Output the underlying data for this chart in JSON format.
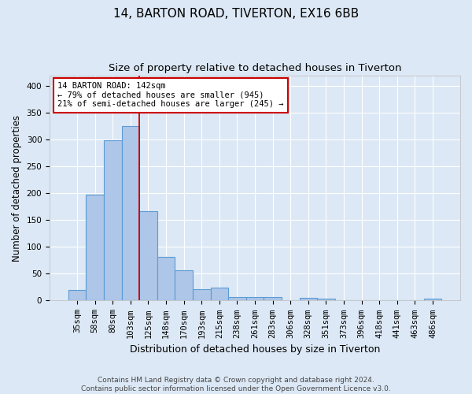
{
  "title1": "14, BARTON ROAD, TIVERTON, EX16 6BB",
  "title2": "Size of property relative to detached houses in Tiverton",
  "xlabel": "Distribution of detached houses by size in Tiverton",
  "ylabel": "Number of detached properties",
  "categories": [
    "35sqm",
    "58sqm",
    "80sqm",
    "103sqm",
    "125sqm",
    "148sqm",
    "170sqm",
    "193sqm",
    "215sqm",
    "238sqm",
    "261sqm",
    "283sqm",
    "306sqm",
    "328sqm",
    "351sqm",
    "373sqm",
    "396sqm",
    "418sqm",
    "441sqm",
    "463sqm",
    "486sqm"
  ],
  "values": [
    20,
    197,
    299,
    325,
    166,
    81,
    57,
    21,
    24,
    7,
    6,
    6,
    0,
    5,
    4,
    0,
    0,
    0,
    0,
    0,
    3
  ],
  "bar_color": "#aec6e8",
  "bar_edge_color": "#5b9bd5",
  "vline_color": "#cc0000",
  "vline_x": 3.5,
  "annotation_line1": "14 BARTON ROAD: 142sqm",
  "annotation_line2": "← 79% of detached houses are smaller (945)",
  "annotation_line3": "21% of semi-detached houses are larger (245) →",
  "annotation_box_edge_color": "#cc0000",
  "ylim": [
    0,
    420
  ],
  "yticks": [
    0,
    50,
    100,
    150,
    200,
    250,
    300,
    350,
    400
  ],
  "bg_color": "#dce8f5",
  "plot_bg_color": "#dce8f5",
  "grid_color": "#ffffff",
  "footer1": "Contains HM Land Registry data © Crown copyright and database right 2024.",
  "footer2": "Contains public sector information licensed under the Open Government Licence v3.0.",
  "title1_fontsize": 11,
  "title2_fontsize": 9.5,
  "xlabel_fontsize": 9,
  "ylabel_fontsize": 8.5,
  "tick_fontsize": 7.5,
  "annotation_fontsize": 7.5,
  "footer_fontsize": 6.5
}
